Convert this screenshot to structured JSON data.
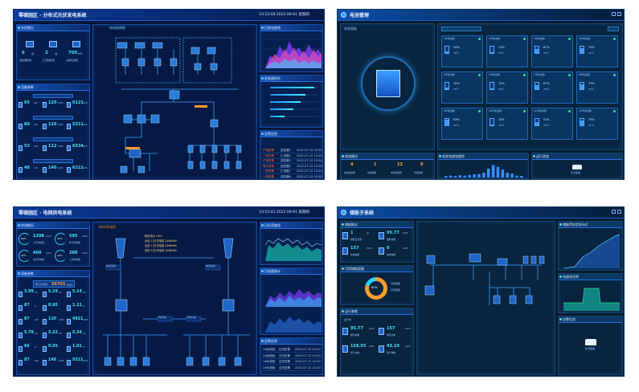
{
  "tile1": {
    "title": "零碳园区 · 分布式光伏发电系统",
    "time": "10:53:09",
    "date": "2022-09-01",
    "weekday": "星期四",
    "panels": {
      "overview": "光伏概况",
      "devices": "设备参数",
      "topology": "电站接线图",
      "gen_curve": "日发电曲线",
      "rank": "逆变器排名",
      "alarm": "告警信息"
    },
    "overview_items": [
      {
        "value": "6",
        "unit": "台",
        "label": "逆变器数量"
      },
      {
        "value": "2",
        "unit": "台",
        "label": "汇流箱数量"
      },
      {
        "value": "705",
        "unit": "kW",
        "label": "总装机容量"
      }
    ],
    "device_rows": [
      {
        "a": "65",
        "a_unit": "kW",
        "b": "120",
        "b_unit": "kWh",
        "c": "6121",
        "c_unit": "kWh"
      },
      {
        "a": "60",
        "a_unit": "kW",
        "b": "110",
        "b_unit": "kWh",
        "c": "5311",
        "c_unit": "kWh"
      },
      {
        "a": "53",
        "a_unit": "kW",
        "b": "112",
        "b_unit": "kWh",
        "c": "6534",
        "c_unit": "kWh"
      },
      {
        "a": "48",
        "a_unit": "kW",
        "b": "140",
        "b_unit": "kWh",
        "c": "6211",
        "c_unit": "kWh"
      }
    ],
    "alarm_rows": [
      {
        "level": "严重告警",
        "name": "逆变器1",
        "time": "2022-07-12 10:20"
      },
      {
        "level": "一般告警",
        "name": "汇流箱2",
        "time": "2022-07-12 10:20"
      },
      {
        "level": "严重告警",
        "name": "逆变器3",
        "time": "2022-07-12 10:20"
      },
      {
        "level": "提示告警",
        "name": "逆变器4",
        "time": "2022-07-12 10:20"
      },
      {
        "level": "一般告警",
        "name": "汇流箱1",
        "time": "2022-07-12 10:20"
      },
      {
        "level": "一般告警",
        "name": "逆变器6",
        "time": "2022-07-12 10:20"
      }
    ],
    "rank_values": [
      0.92,
      0.74,
      0.63,
      0.48,
      0.3
    ]
  },
  "tile2": {
    "title": "电池管理",
    "crumb": "电池面板",
    "battery_label": "电池组",
    "stats": [
      {
        "value": "4",
        "label": "电池簇数量"
      },
      {
        "value": "1",
        "label": "在线数量"
      },
      {
        "value": "12",
        "label": "电池包数量"
      },
      {
        "value": "0",
        "label": "告警数量"
      }
    ],
    "panels": {
      "overview": "电池概况",
      "soc": "电池充放电趋势",
      "status": "运行状态"
    },
    "cells": [
      {
        "name": "1号电池簇",
        "pct": "20%",
        "temp": "35℃"
      },
      {
        "name": "2号电池簇",
        "pct": "11%",
        "temp": "35℃"
      },
      {
        "name": "3号电池簇",
        "pct": "67%",
        "temp": "35℃"
      },
      {
        "name": "4号电池簇",
        "pct": "75%",
        "temp": "35℃"
      },
      {
        "name": "5号电池簇",
        "pct": "20%",
        "temp": "35℃"
      },
      {
        "name": "6号电池簇",
        "pct": "15%",
        "temp": "35℃"
      },
      {
        "name": "7号电池簇",
        "pct": "67%",
        "temp": "35℃"
      },
      {
        "name": "8号电池簇",
        "pct": "75%",
        "temp": "35℃"
      },
      {
        "name": "9号电池簇",
        "pct": "83%",
        "temp": "35℃"
      },
      {
        "name": "10号电池簇",
        "pct": "10%",
        "temp": "35℃"
      },
      {
        "name": "11号电池簇",
        "pct": "51%",
        "temp": "35℃"
      },
      {
        "name": "12号电池簇",
        "pct": "75%",
        "temp": "35℃"
      }
    ],
    "bars": [
      0.1,
      0.12,
      0.1,
      0.14,
      0.12,
      0.16,
      0.2,
      0.22,
      0.3,
      0.55,
      0.78,
      0.66,
      0.5,
      0.3,
      0.25,
      0.12,
      0.1
    ],
    "empty_text": "暂无数据"
  },
  "tile3": {
    "title": "零碳园区 · 电网供电系统",
    "time": "10:53:41",
    "date": "2022-09-01",
    "weekday": "星期四",
    "panels": {
      "overview": "供电概况",
      "energy": "设备参数",
      "topology": "10kV开闭所",
      "load": "日负荷曲线",
      "power": "日电量统计",
      "alarm": "告警信息"
    },
    "rings": [
      {
        "pct": "60%",
        "value": "1208",
        "unit": "kWh",
        "label": "今日供电量"
      },
      {
        "pct": "20%",
        "value": "595",
        "unit": "kWh",
        "label": "昨日供电量"
      },
      {
        "pct": "10%",
        "value": "400",
        "unit": "kWh",
        "label": "本月供电量"
      },
      {
        "pct": "10%",
        "value": "200",
        "unit": "kWh",
        "label": "上月供电量"
      }
    ],
    "total_label": "累计供电量",
    "total_value": "56765",
    "total_unit": "kWh",
    "param_rows": [
      {
        "a": "3.09",
        "a_unit": "kV",
        "b": "5.29",
        "b_unit": "kV",
        "c": "5.14",
        "c_unit": "kV"
      },
      {
        "a": "87",
        "a_unit": "A",
        "b": "0.95",
        "b_unit": "",
        "c": "1.21",
        "c_unit": "%"
      },
      {
        "a": "87",
        "a_unit": "kW",
        "b": "120",
        "b_unit": "kWh",
        "c": "4921",
        "c_unit": "kWh"
      },
      {
        "a": "5.79",
        "a_unit": "kV",
        "b": "5.22",
        "b_unit": "kV",
        "c": "5.34",
        "c_unit": "kV"
      },
      {
        "a": "66",
        "a_unit": "A",
        "b": "0.95",
        "b_unit": "",
        "c": "1.01",
        "c_unit": "%"
      },
      {
        "a": "87",
        "a_unit": "kW",
        "b": "148",
        "b_unit": "kWh",
        "c": "5511",
        "c_unit": "kWh"
      }
    ],
    "info_lines": [
      "额定电压 10kV",
      "出线 1 回 供电量 2498kWh",
      "出线 2 回 供电量 2498kWh",
      "进线 3 回 供电量 2498kWh"
    ],
    "labels": {
      "incoming1": "电源进线",
      "incoming2": "电源进线",
      "bus1": "母线I段",
      "bus2": "母线II段"
    },
    "alarm_rows": [
      {
        "level": "1#进线柜",
        "name": "过流告警",
        "time": "2022-07-12 10:20"
      },
      {
        "level": "2#进线柜",
        "name": "过流告警",
        "time": "2022-07-12 10:20"
      },
      {
        "level": "1#出线柜",
        "name": "过压告警",
        "time": "2022-07-12 10:20"
      },
      {
        "level": "2#出线柜",
        "name": "过压告警",
        "time": "2022-07-12 10:20"
      }
    ]
  },
  "tile4": {
    "title": "储能子系统",
    "panels": {
      "overview": "储能概况",
      "util": "可用储能容量",
      "params": "运行参数",
      "soc": "储能荷电状态SoC",
      "power": "充放电功率",
      "alarm": "告警信息"
    },
    "overview_items": [
      {
        "value": "1",
        "unit": "台",
        "label": "储能变流器"
      },
      {
        "value": "95.77",
        "unit": "kWh",
        "label": "储能容量"
      },
      {
        "value": "157",
        "unit": "kWh",
        "label": "充电电量"
      },
      {
        "value": "0",
        "unit": "kWh",
        "label": "放电电量"
      }
    ],
    "donut_pct": "80%",
    "donut_legend": [
      "可用容量",
      "已用容量"
    ],
    "param_sub": "运行中",
    "param_items": [
      {
        "value": "95.77",
        "unit": "kWh",
        "label": "额定容量"
      },
      {
        "value": "157",
        "unit": "kWh",
        "label": "额定功率"
      },
      {
        "value": "158.55",
        "unit": "kWh",
        "label": "累计充电"
      },
      {
        "value": "43.19",
        "unit": "kWh",
        "label": "累计放电"
      }
    ],
    "empty_text": "暂无数据"
  },
  "colors": {
    "bg": "#06163a",
    "accent": "#47e6ff",
    "panel": "#0b2a62",
    "alarm": "#ff6a3d",
    "green": "#30e38f"
  }
}
